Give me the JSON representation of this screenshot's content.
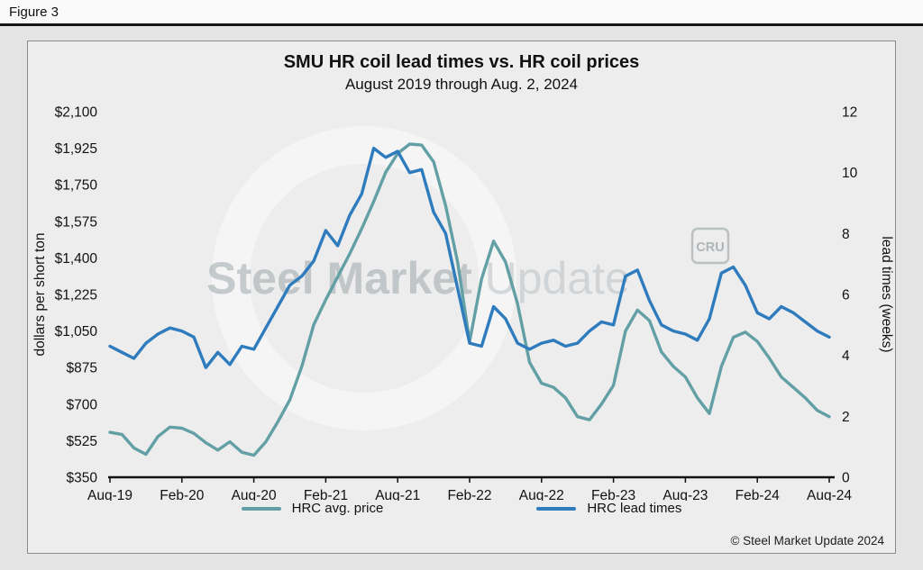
{
  "figure_label": "Figure 3",
  "chart_data": {
    "type": "line",
    "title": "SMU HR coil lead times vs. HR coil prices",
    "subtitle": "August 2019 through Aug. 2, 2024",
    "ylabel_left": "dollars per short ton",
    "ylabel_right": "lead times (weeks)",
    "ylim_left": [
      350,
      2100
    ],
    "ylim_right": [
      0,
      12
    ],
    "grid": false,
    "legend_position": "bottom",
    "y_ticks_left": [
      "$350",
      "$525",
      "$700",
      "$875",
      "$1,050",
      "$1,225",
      "$1,400",
      "$1,575",
      "$1,750",
      "$1,925",
      "$2,100"
    ],
    "y_ticks_right": [
      "0",
      "2",
      "4",
      "6",
      "8",
      "10",
      "12"
    ],
    "x_tick_labels": [
      "Aug-19",
      "Feb-20",
      "Aug-20",
      "Feb-21",
      "Aug-21",
      "Feb-22",
      "Aug-22",
      "Feb-23",
      "Aug-23",
      "Feb-24",
      "Aug-24"
    ],
    "x_tick_indices": [
      0,
      6,
      12,
      18,
      24,
      30,
      36,
      42,
      48,
      54,
      60
    ],
    "x": [
      "2019-08",
      "2019-09",
      "2019-10",
      "2019-11",
      "2019-12",
      "2020-01",
      "2020-02",
      "2020-03",
      "2020-04",
      "2020-05",
      "2020-06",
      "2020-07",
      "2020-08",
      "2020-09",
      "2020-10",
      "2020-11",
      "2020-12",
      "2021-01",
      "2021-02",
      "2021-03",
      "2021-04",
      "2021-05",
      "2021-06",
      "2021-07",
      "2021-08",
      "2021-09",
      "2021-10",
      "2021-11",
      "2021-12",
      "2022-01",
      "2022-02",
      "2022-03",
      "2022-04",
      "2022-05",
      "2022-06",
      "2022-07",
      "2022-08",
      "2022-09",
      "2022-10",
      "2022-11",
      "2022-12",
      "2023-01",
      "2023-02",
      "2023-03",
      "2023-04",
      "2023-05",
      "2023-06",
      "2023-07",
      "2023-08",
      "2023-09",
      "2023-10",
      "2023-11",
      "2023-12",
      "2024-01",
      "2024-02",
      "2024-03",
      "2024-04",
      "2024-05",
      "2024-06",
      "2024-07",
      "2024-08"
    ],
    "series": [
      {
        "name": "HRC avg. price",
        "axis": "left",
        "unit": "dollars per short ton",
        "color": "#63a0a5",
        "values": [
          565,
          555,
          490,
          460,
          545,
          590,
          585,
          560,
          515,
          480,
          520,
          470,
          455,
          520,
          615,
          720,
          880,
          1080,
          1200,
          1310,
          1420,
          1540,
          1670,
          1810,
          1900,
          1945,
          1940,
          1860,
          1650,
          1380,
          1000,
          1300,
          1480,
          1380,
          1180,
          900,
          800,
          780,
          730,
          640,
          625,
          700,
          790,
          1050,
          1150,
          1100,
          950,
          880,
          830,
          730,
          655,
          880,
          1020,
          1045,
          1000,
          920,
          830,
          780,
          730,
          670,
          640
        ]
      },
      {
        "name": "HRC lead times",
        "axis": "right",
        "unit": "weeks",
        "color": "#2e7bbd",
        "values": [
          4.3,
          4.1,
          3.9,
          4.4,
          4.7,
          4.9,
          4.8,
          4.6,
          3.6,
          4.1,
          3.7,
          4.3,
          4.2,
          4.9,
          5.6,
          6.3,
          6.6,
          7.1,
          8.1,
          7.6,
          8.6,
          9.3,
          10.8,
          10.5,
          10.7,
          10.0,
          10.1,
          8.7,
          8.0,
          6.2,
          4.4,
          4.3,
          5.6,
          5.2,
          4.4,
          4.2,
          4.4,
          4.5,
          4.3,
          4.4,
          4.8,
          5.1,
          5.0,
          6.6,
          6.8,
          5.8,
          5.0,
          4.8,
          4.7,
          4.5,
          5.2,
          6.7,
          6.9,
          6.3,
          5.4,
          5.2,
          5.6,
          5.4,
          5.1,
          4.8,
          4.6
        ]
      }
    ]
  },
  "watermark": {
    "brand_bold": "Steel Market",
    "brand_light": "Update",
    "cru": "CRU"
  },
  "footer": {
    "copyright": "© Steel Market Update 2024"
  },
  "colors": {
    "price_line": "#63a0a5",
    "leadtime_line": "#2e7bbd",
    "axis": "#111111",
    "card_background": "#ededed",
    "page_background": "#e4e4e4"
  }
}
